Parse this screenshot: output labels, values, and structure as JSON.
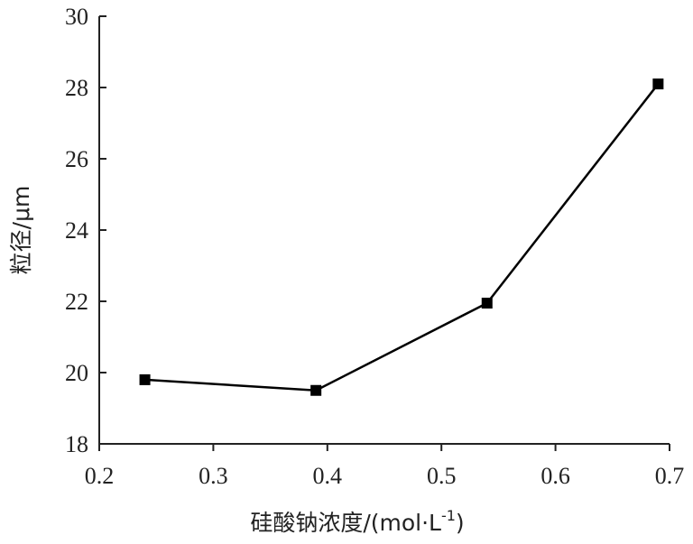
{
  "chart_data": {
    "type": "line",
    "title": "",
    "xlabel": "硅酸钠浓度/(mol·L",
    "xlabel_sup": "-1",
    "xlabel_suffix": ")",
    "ylabel": "粒径/μm",
    "xlim": [
      0.2,
      0.7
    ],
    "ylim": [
      18,
      30
    ],
    "x_ticks": [
      0.2,
      0.3,
      0.4,
      0.5,
      0.6,
      0.7
    ],
    "x_tick_labels": [
      "0.2",
      "0.3",
      "0.4",
      "0.5",
      "0.6",
      "0.7"
    ],
    "y_ticks": [
      18,
      20,
      22,
      24,
      26,
      28,
      30
    ],
    "y_tick_labels": [
      "18",
      "20",
      "22",
      "24",
      "26",
      "28",
      "30"
    ],
    "grid": false,
    "marker": "square",
    "line_color": "#000000",
    "series": [
      {
        "x": [
          0.24,
          0.39,
          0.54,
          0.69
        ],
        "values": [
          19.8,
          19.5,
          21.95,
          28.1
        ]
      }
    ]
  }
}
